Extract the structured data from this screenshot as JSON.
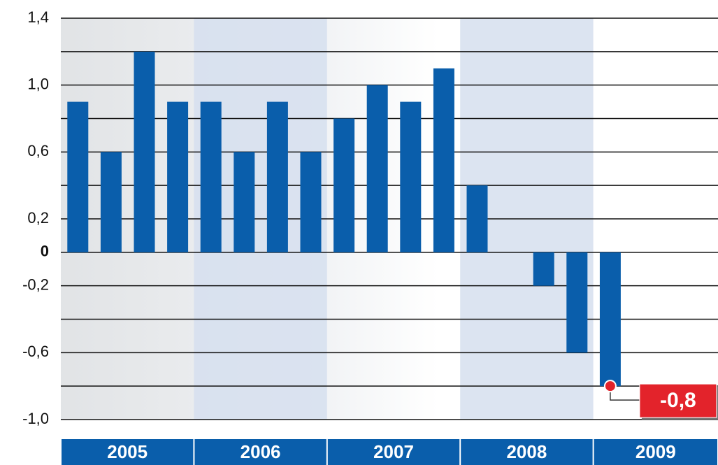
{
  "chart_data": {
    "type": "bar",
    "color": "#0a5eab",
    "groups": [
      "2005",
      "2006",
      "2007",
      "2008",
      "2009"
    ],
    "values": [
      0.9,
      0.6,
      1.2,
      0.9,
      0.9,
      0.6,
      0.9,
      0.6,
      0.8,
      1.0,
      0.9,
      1.1,
      0.4,
      0,
      -0.2,
      -0.6,
      -0.8
    ],
    "value_labels": [
      null,
      null,
      null,
      null,
      null,
      null,
      null,
      null,
      null,
      null,
      null,
      null,
      null,
      null,
      null,
      null,
      "-0,8"
    ],
    "ylim": [
      -1.0,
      1.4
    ],
    "yticks": [
      {
        "value": 1.4,
        "label": "1,4"
      },
      {
        "value": 1.0,
        "label": "1,0"
      },
      {
        "value": 0.6,
        "label": "0,6"
      },
      {
        "value": 0.2,
        "label": "0,2"
      },
      0,
      {
        "value": -0.2,
        "label": "-0,2"
      },
      {
        "value": -0.6,
        "label": "-0,6"
      },
      {
        "value": -1.0,
        "label": "-1,0"
      }
    ],
    "minor_yticks": [
      1.2,
      0.8,
      0.4,
      -0.4,
      -0.8
    ],
    "grid": true,
    "highlight_color": "#e3232b",
    "shade_color": "#d6dfee"
  }
}
